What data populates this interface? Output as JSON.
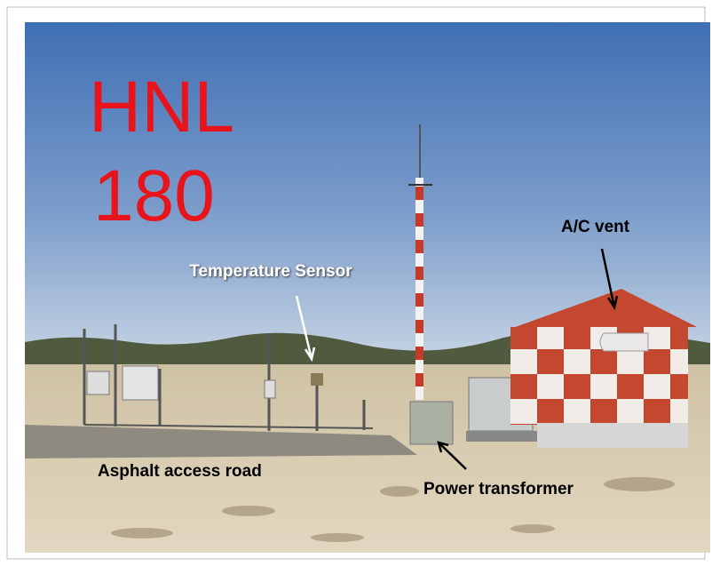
{
  "handwriting": [
    "HNL",
    "180"
  ],
  "labels": [
    "Temperature Sensor",
    "A/C vent",
    "Asphalt access road",
    "Power transformer"
  ]
}
